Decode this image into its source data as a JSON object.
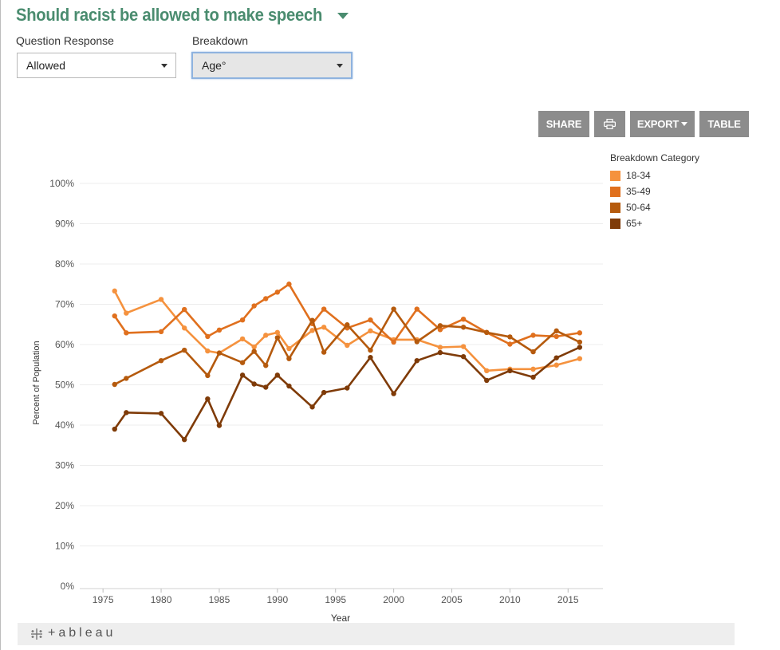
{
  "header": {
    "title": "Should racist be allowed to make speech"
  },
  "filters": {
    "question": {
      "label": "Question Response",
      "value": "Allowed"
    },
    "breakdown": {
      "label": "Breakdown",
      "value": "Age°"
    }
  },
  "toolbar": {
    "share_label": "SHARE",
    "print_icon": "printer-icon",
    "export_label": "EXPORT",
    "table_label": "TABLE"
  },
  "footer": {
    "logo_text": "+ableau"
  },
  "chart_data": {
    "type": "line",
    "title": "",
    "xlabel": "Year",
    "ylabel": "Percent of Population",
    "xlim": [
      1973,
      2018
    ],
    "ylim": [
      0,
      100
    ],
    "x_ticks": [
      1975,
      1980,
      1985,
      1990,
      1995,
      2000,
      2005,
      2010,
      2015
    ],
    "y_ticks": [
      0,
      10,
      20,
      30,
      40,
      50,
      60,
      70,
      80,
      90,
      100
    ],
    "y_tick_labels": [
      "0%",
      "10%",
      "20%",
      "30%",
      "40%",
      "50%",
      "60%",
      "70%",
      "80%",
      "90%",
      "100%"
    ],
    "grid": "horizontal",
    "legend": {
      "title": "Breakdown Category",
      "placement": "right"
    },
    "series": [
      {
        "name": "18-34",
        "color": "#f5923e",
        "points": [
          [
            1976,
            73.3
          ],
          [
            1977,
            67.8
          ],
          [
            1980,
            71.2
          ],
          [
            1982,
            64.1
          ],
          [
            1984,
            58.4
          ],
          [
            1985,
            57.9
          ],
          [
            1987,
            61.4
          ],
          [
            1988,
            59.4
          ],
          [
            1989,
            62.3
          ],
          [
            1990,
            63.0
          ],
          [
            1991,
            59.0
          ],
          [
            1993,
            63.5
          ],
          [
            1994,
            64.3
          ],
          [
            1996,
            59.8
          ],
          [
            1998,
            63.4
          ],
          [
            2000,
            61.2
          ],
          [
            2002,
            61.2
          ],
          [
            2004,
            59.3
          ],
          [
            2006,
            59.5
          ],
          [
            2008,
            53.5
          ],
          [
            2010,
            53.9
          ],
          [
            2012,
            53.9
          ],
          [
            2014,
            54.9
          ],
          [
            2016,
            56.5
          ]
        ]
      },
      {
        "name": "35-49",
        "color": "#e0701e",
        "points": [
          [
            1976,
            67.1
          ],
          [
            1977,
            62.9
          ],
          [
            1980,
            63.2
          ],
          [
            1982,
            68.7
          ],
          [
            1984,
            62.0
          ],
          [
            1985,
            63.6
          ],
          [
            1987,
            66.1
          ],
          [
            1988,
            69.6
          ],
          [
            1989,
            71.4
          ],
          [
            1990,
            73.0
          ],
          [
            1991,
            75.0
          ],
          [
            1993,
            65.2
          ],
          [
            1994,
            68.8
          ],
          [
            1996,
            64.1
          ],
          [
            1998,
            66.1
          ],
          [
            2000,
            60.6
          ],
          [
            2002,
            68.8
          ],
          [
            2004,
            63.7
          ],
          [
            2006,
            66.3
          ],
          [
            2008,
            63.0
          ],
          [
            2010,
            60.1
          ],
          [
            2012,
            62.3
          ],
          [
            2014,
            62.0
          ],
          [
            2016,
            62.9
          ]
        ]
      },
      {
        "name": "50-64",
        "color": "#b55a0d",
        "points": [
          [
            1976,
            50.1
          ],
          [
            1977,
            51.6
          ],
          [
            1980,
            56.0
          ],
          [
            1982,
            58.6
          ],
          [
            1984,
            52.3
          ],
          [
            1985,
            57.9
          ],
          [
            1987,
            55.5
          ],
          [
            1988,
            58.3
          ],
          [
            1989,
            54.8
          ],
          [
            1990,
            61.7
          ],
          [
            1991,
            56.5
          ],
          [
            1993,
            66.0
          ],
          [
            1994,
            58.1
          ],
          [
            1996,
            64.9
          ],
          [
            1998,
            58.6
          ],
          [
            2000,
            68.8
          ],
          [
            2002,
            60.7
          ],
          [
            2004,
            64.7
          ],
          [
            2006,
            64.3
          ],
          [
            2008,
            63.0
          ],
          [
            2010,
            61.9
          ],
          [
            2012,
            58.2
          ],
          [
            2014,
            63.4
          ],
          [
            2016,
            60.6
          ]
        ]
      },
      {
        "name": "65+",
        "color": "#7f3b08",
        "points": [
          [
            1976,
            39.0
          ],
          [
            1977,
            43.1
          ],
          [
            1980,
            42.9
          ],
          [
            1982,
            36.4
          ],
          [
            1984,
            46.5
          ],
          [
            1985,
            39.9
          ],
          [
            1987,
            52.4
          ],
          [
            1988,
            50.2
          ],
          [
            1989,
            49.4
          ],
          [
            1990,
            52.4
          ],
          [
            1991,
            49.7
          ],
          [
            1993,
            44.5
          ],
          [
            1994,
            48.1
          ],
          [
            1996,
            49.2
          ],
          [
            1998,
            56.8
          ],
          [
            2000,
            47.8
          ],
          [
            2002,
            56.0
          ],
          [
            2004,
            58.0
          ],
          [
            2006,
            57.0
          ],
          [
            2008,
            51.1
          ],
          [
            2010,
            53.5
          ],
          [
            2012,
            51.9
          ],
          [
            2014,
            56.7
          ],
          [
            2016,
            59.3
          ]
        ]
      }
    ]
  }
}
